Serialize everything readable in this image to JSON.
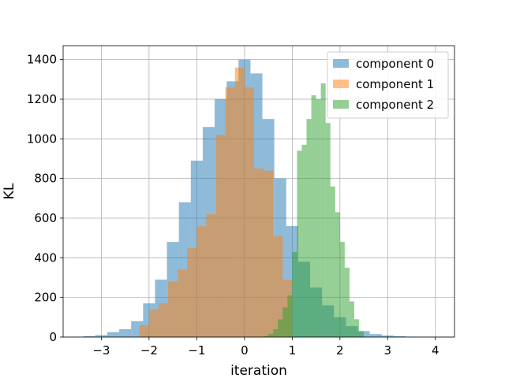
{
  "chart_data": {
    "type": "bar",
    "title": "",
    "xlabel": "iteration",
    "ylabel": "KL",
    "xlim": [
      -3.8,
      4.4
    ],
    "ylim": [
      0,
      1470
    ],
    "xticks": [
      -3,
      -2,
      -1,
      0,
      1,
      2,
      3,
      4
    ],
    "xtick_labels": [
      "−3",
      "−2",
      "−1",
      "0",
      "1",
      "2",
      "3",
      "4"
    ],
    "yticks": [
      0,
      200,
      400,
      600,
      800,
      1000,
      1200,
      1400
    ],
    "grid": true,
    "legend_position": "top-right",
    "series": [
      {
        "name": "component 0",
        "color": "#1f77b4",
        "alpha": 0.5,
        "bin_width": 0.25,
        "x": [
          -3.25,
          -3.0,
          -2.75,
          -2.5,
          -2.25,
          -2.0,
          -1.75,
          -1.5,
          -1.25,
          -1.0,
          -0.75,
          -0.5,
          -0.25,
          0.0,
          0.25,
          0.5,
          0.75,
          1.0,
          1.25,
          1.5,
          1.75,
          2.0,
          2.25,
          2.5,
          2.75,
          3.0,
          3.25,
          3.5
        ],
        "values": [
          5,
          10,
          25,
          40,
          80,
          170,
          290,
          480,
          680,
          890,
          1060,
          1200,
          1290,
          1400,
          1330,
          1100,
          800,
          560,
          380,
          250,
          160,
          100,
          55,
          30,
          15,
          8,
          4,
          2
        ]
      },
      {
        "name": "component 1",
        "color": "#ff7f0e",
        "alpha": 0.5,
        "bin_width": 0.2,
        "x": [
          -2.1,
          -1.9,
          -1.7,
          -1.5,
          -1.3,
          -1.1,
          -0.9,
          -0.7,
          -0.5,
          -0.3,
          -0.1,
          0.1,
          0.3,
          0.5,
          0.7,
          0.9
        ],
        "values": [
          60,
          140,
          170,
          280,
          340,
          450,
          560,
          620,
          1020,
          1260,
          1360,
          1260,
          850,
          840,
          510,
          290
        ]
      },
      {
        "name": "component 2",
        "color": "#2ca02c",
        "alpha": 0.5,
        "bin_width": 0.1,
        "x": [
          0.45,
          0.55,
          0.65,
          0.75,
          0.85,
          0.95,
          1.05,
          1.15,
          1.25,
          1.35,
          1.45,
          1.55,
          1.65,
          1.75,
          1.85,
          1.95,
          2.05,
          2.15,
          2.25,
          2.35,
          2.45
        ],
        "values": [
          5,
          15,
          40,
          90,
          150,
          210,
          430,
          940,
          970,
          1100,
          1220,
          1200,
          1280,
          1080,
          760,
          630,
          480,
          350,
          180,
          90,
          30
        ]
      }
    ]
  }
}
